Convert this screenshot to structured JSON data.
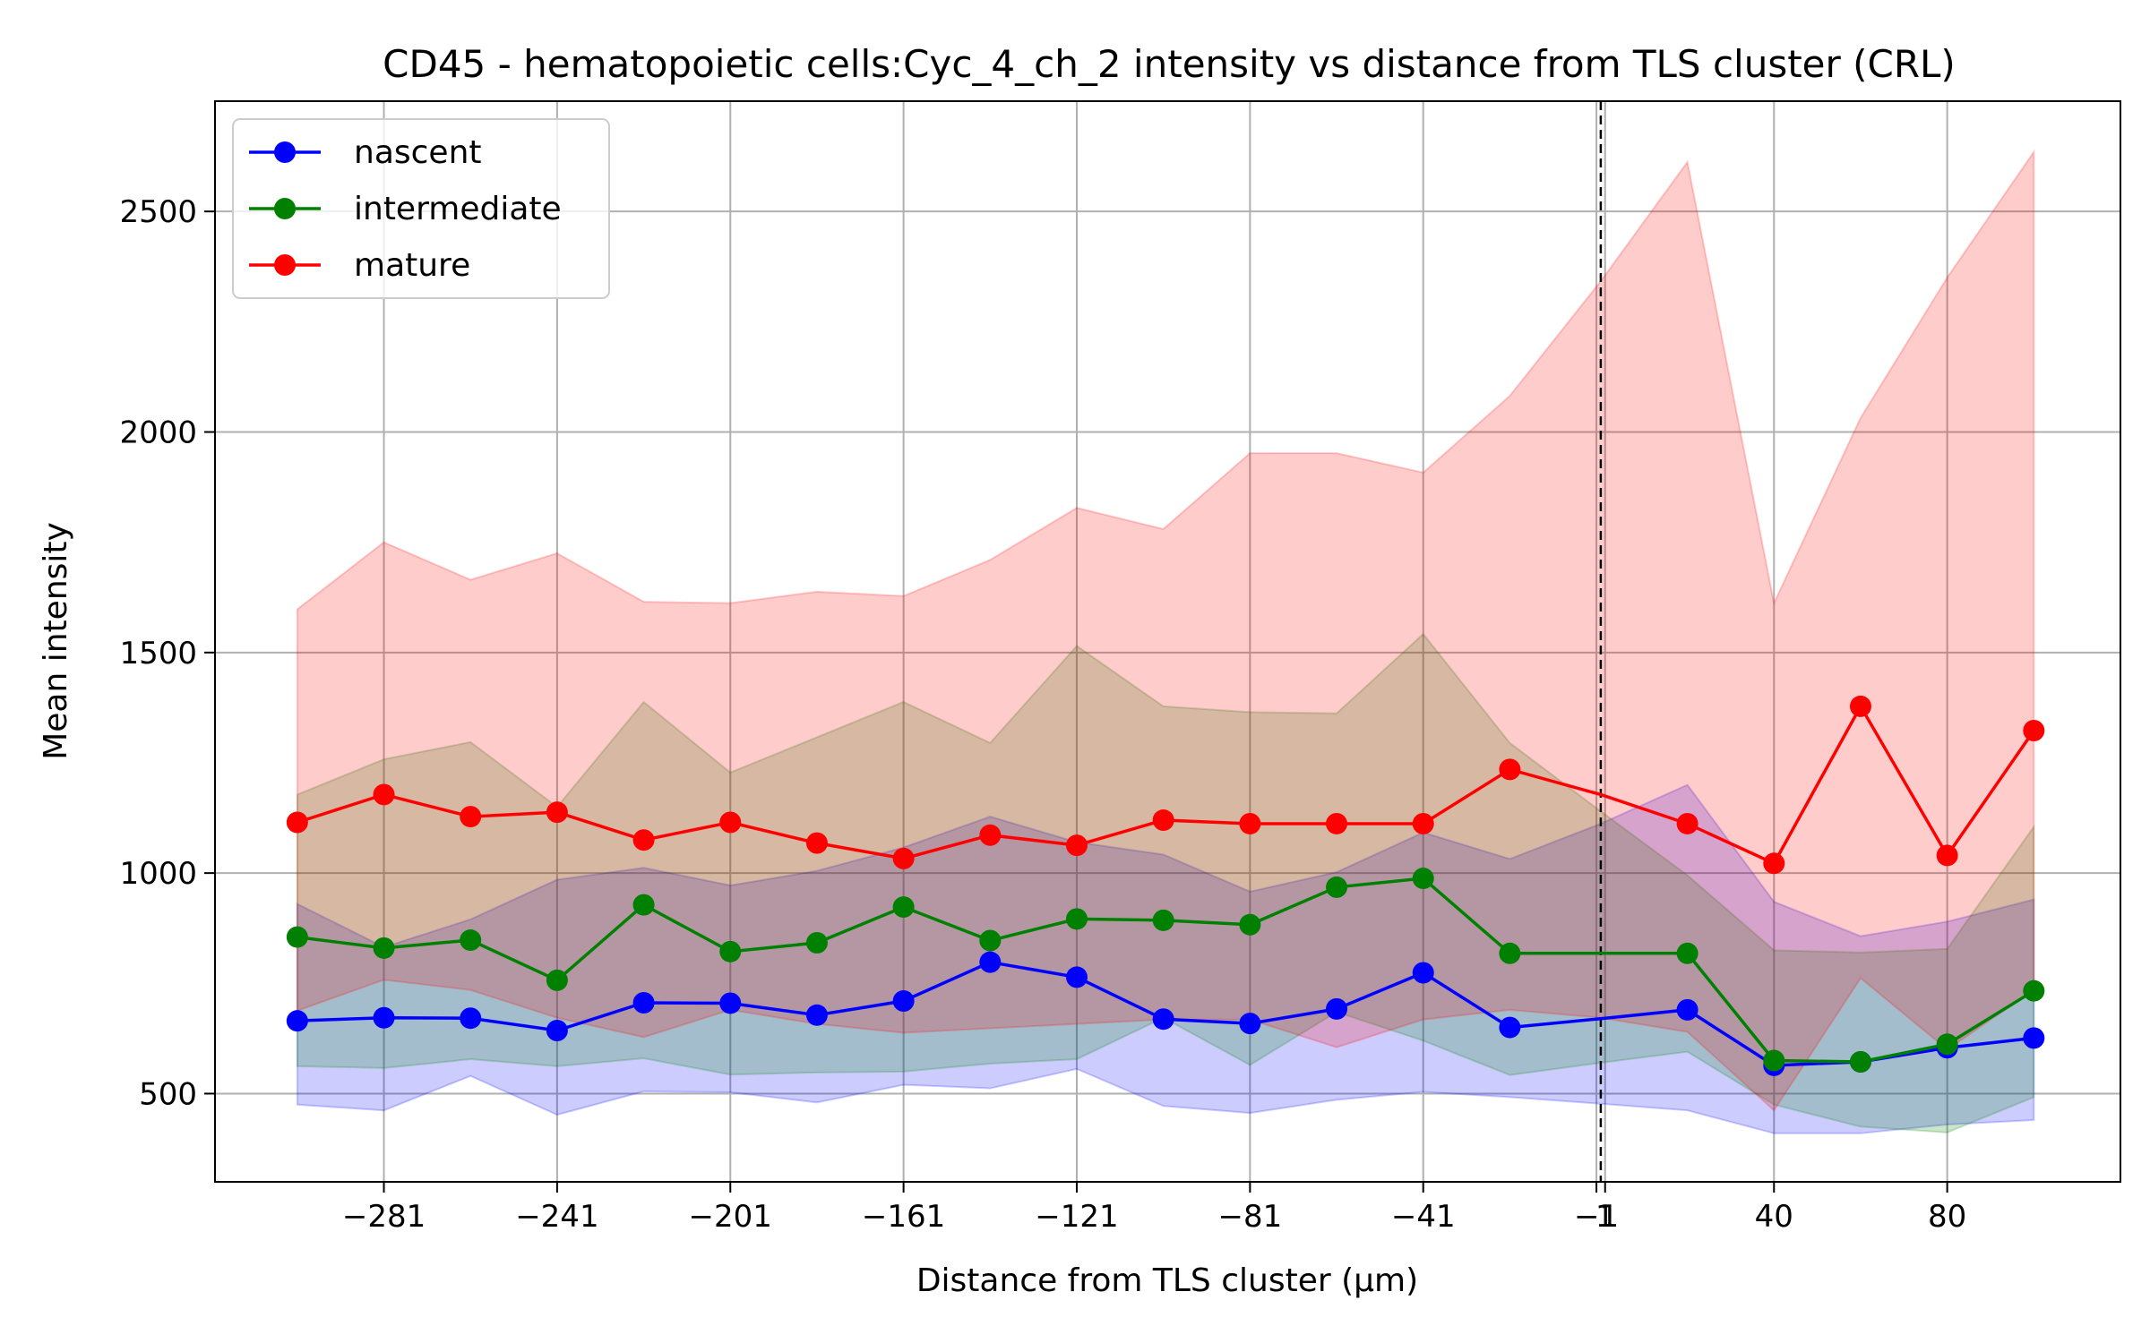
{
  "chart_data": {
    "type": "line",
    "title": "CD45 - hematopoietic cells:Cyc_4_ch_2 intensity vs distance from TLS cluster (CRL)",
    "xlabel": "Distance from TLS cluster (μm)",
    "ylabel": "Mean intensity",
    "xlim": [
      -320,
      120
    ],
    "ylim": [
      300,
      2750
    ],
    "x_ticks": [
      -281,
      -241,
      -201,
      -161,
      -121,
      -81,
      -41,
      -1,
      1,
      40,
      80
    ],
    "x_tick_labels": [
      "−281",
      "−241",
      "−201",
      "−161",
      "−121",
      "−81",
      "−41",
      "−1",
      "1",
      "40",
      "80"
    ],
    "y_ticks": [
      500,
      1000,
      1500,
      2000,
      2500
    ],
    "y_tick_labels": [
      "500",
      "1000",
      "1500",
      "2000",
      "2500"
    ],
    "grid": true,
    "legend_position": "top-left",
    "reference_line_x": 0,
    "x": [
      -301,
      -281,
      -261,
      -241,
      -221,
      -201,
      -181,
      -161,
      -141,
      -121,
      -101,
      -81,
      -61,
      -41,
      -21,
      0,
      20,
      40,
      60,
      80,
      100
    ],
    "series": [
      {
        "name": "nascent",
        "color": "#0000ff",
        "fill_color": "#0000ff",
        "values": [
          665,
          672,
          671,
          643,
          706,
          705,
          678,
          710,
          798,
          764,
          669,
          659,
          692,
          774,
          650,
          670,
          690,
          564,
          572,
          604,
          626
        ],
        "lower": [
          475,
          462,
          540,
          452,
          505,
          503,
          480,
          520,
          512,
          556,
          472,
          456,
          486,
          504,
          492,
          477,
          462,
          410,
          410,
          430,
          440
        ],
        "upper": [
          930,
          832,
          895,
          985,
          1012,
          972,
          1005,
          1058,
          1128,
          1070,
          1042,
          958,
          1002,
          1092,
          1032,
          1112,
          1200,
          935,
          857,
          890,
          940
        ]
      },
      {
        "name": "intermediate",
        "color": "#008000",
        "fill_color": "#008000",
        "values": [
          855,
          830,
          848,
          757,
          928,
          822,
          842,
          923,
          847,
          896,
          893,
          883,
          968,
          988,
          818,
          818,
          818,
          575,
          572,
          612,
          733
        ],
        "lower": [
          562,
          558,
          578,
          562,
          580,
          543,
          548,
          550,
          568,
          578,
          672,
          565,
          685,
          620,
          542,
          570,
          595,
          475,
          425,
          412,
          492
        ],
        "upper": [
          1178,
          1258,
          1297,
          1150,
          1388,
          1228,
          1308,
          1388,
          1295,
          1515,
          1378,
          1365,
          1362,
          1542,
          1295,
          1140,
          995,
          825,
          820,
          828,
          1105
        ]
      },
      {
        "name": "mature",
        "color": "#ff0000",
        "fill_color": "#ff0000",
        "values": [
          1115,
          1178,
          1128,
          1138,
          1075,
          1115,
          1068,
          1033,
          1086,
          1063,
          1120,
          1112,
          1112,
          1112,
          1235,
          1178,
          1112,
          1022,
          1378,
          1040,
          1323
        ],
        "lower": [
          688,
          758,
          735,
          672,
          628,
          690,
          658,
          638,
          648,
          658,
          668,
          668,
          605,
          668,
          690,
          672,
          640,
          462,
          762,
          600,
          735
        ],
        "upper": [
          1598,
          1750,
          1665,
          1725,
          1615,
          1612,
          1638,
          1628,
          1710,
          1828,
          1780,
          1952,
          1952,
          1908,
          2082,
          2342,
          2612,
          1612,
          2032,
          2350,
          2635
        ]
      }
    ]
  }
}
